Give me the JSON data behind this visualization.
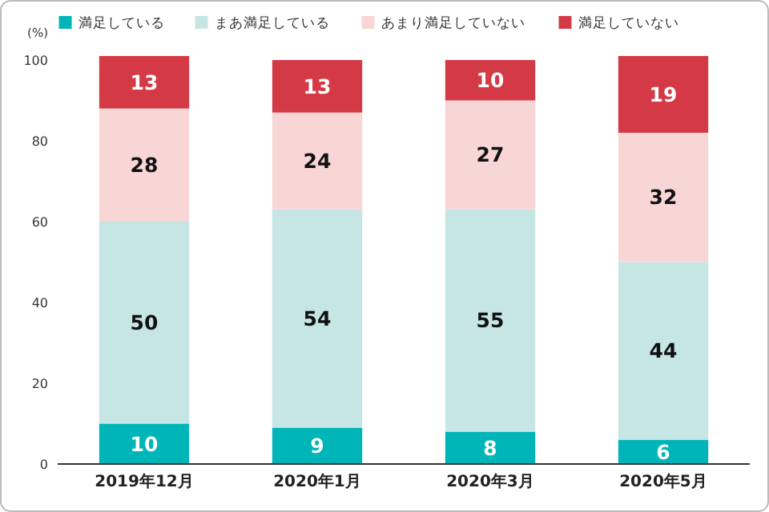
{
  "chart_data": {
    "type": "bar",
    "stacked": true,
    "ylabel": "(%)",
    "categories": [
      "2019年12月",
      "2020年1月",
      "2020年3月",
      "2020年5月"
    ],
    "series": [
      {
        "name": "満足している",
        "color": "#00b5b8",
        "values": [
          10,
          9,
          8,
          6
        ]
      },
      {
        "name": "まあ満足している",
        "color": "#c5e6e4",
        "values": [
          50,
          54,
          55,
          44
        ]
      },
      {
        "name": "あまり満足していない",
        "color": "#f9d6d6",
        "values": [
          28,
          24,
          27,
          32
        ]
      },
      {
        "name": "満足していない",
        "color": "#d43a45",
        "values": [
          13,
          13,
          10,
          19
        ]
      }
    ],
    "ylim": [
      0,
      101
    ],
    "yticks": [
      0,
      20,
      40,
      60,
      80,
      100
    ],
    "data_labels": true,
    "legend": "top",
    "grid": false
  }
}
